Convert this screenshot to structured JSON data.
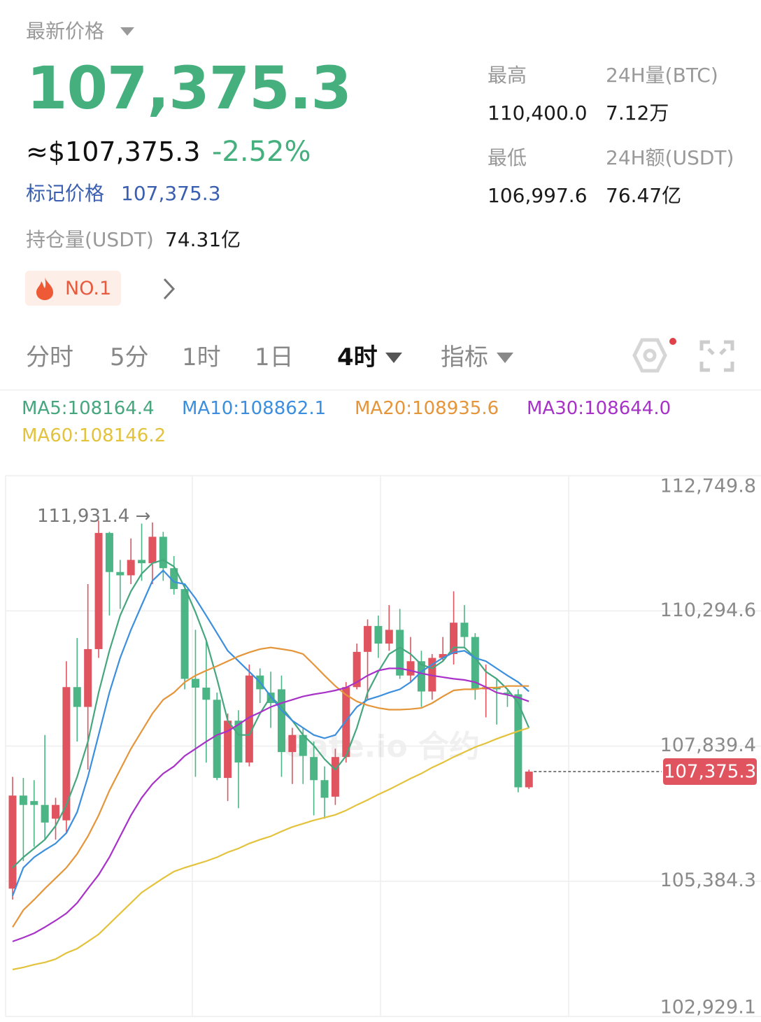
{
  "header": {
    "price_label": "最新价格",
    "price": "107,375.3",
    "usd_price": "≈$107,375.3",
    "change": "-2.52%",
    "mark_price_label": "标记价格",
    "mark_price": "107,375.3",
    "oi_label": "持仓量(USDT)",
    "oi": "74.31亿",
    "rank": "NO.1"
  },
  "stats": [
    {
      "label": "最高",
      "value": "110,400.0"
    },
    {
      "label": "24H量(BTC)",
      "value": "7.12万"
    },
    {
      "label": "最低",
      "value": "106,997.6"
    },
    {
      "label": "24H额(USDT)",
      "value": "76.47亿"
    }
  ],
  "tabs": [
    "分时",
    "5分",
    "1时",
    "1日",
    "4时",
    "指标"
  ],
  "active_tab": 4,
  "chart_data": {
    "type": "candlestick",
    "up_color": "#e0545f",
    "down_color": "#4cb585",
    "ylim": [
      102929.1,
      112749.8
    ],
    "yticks": [
      {
        "value": 102929.1,
        "label": "102,929.1"
      },
      {
        "value": 105384.3,
        "label": "105,384.3"
      },
      {
        "value": 107839.4,
        "label": "107,839.4"
      },
      {
        "value": 110294.6,
        "label": "110,294.6"
      },
      {
        "value": 112749.8,
        "label": "112,749.8"
      }
    ],
    "grid": true,
    "high_label": "111,931.4 →",
    "last_price_label": "107,375.3",
    "watermark": "Gate.io 合约",
    "open": [
      105250,
      106940,
      106840,
      106770,
      106520,
      106490,
      108910,
      108550,
      109600,
      111710,
      111000,
      110940,
      111220,
      111160,
      111640,
      111070,
      110690,
      109060,
      108900,
      108680,
      107260,
      108300,
      107540,
      109120,
      108810,
      108870,
      107730,
      108040,
      107640,
      107220,
      106920,
      107640,
      108910,
      109550,
      110020,
      109700,
      109950,
      109120,
      109380,
      108830,
      109440,
      109510,
      110080,
      109820,
      108870,
      108910,
      108810,
      108780,
      107090
    ],
    "high": [
      107280,
      107260,
      107220,
      108040,
      106900,
      109380,
      109800,
      110780,
      111931.4,
      111730,
      111220,
      111610,
      111880,
      111900,
      111730,
      111290,
      110780,
      109950,
      109760,
      108810,
      108430,
      108490,
      109320,
      109250,
      109190,
      109120,
      108170,
      108170,
      107920,
      107470,
      107790,
      109000,
      109700,
      110140,
      110210,
      110400,
      110330,
      109820,
      109570,
      109510,
      109820,
      110650,
      110400,
      109890,
      109320,
      109060,
      108870,
      108870,
      107410
    ],
    "low": [
      105050,
      105750,
      106010,
      106140,
      106140,
      106260,
      107920,
      107410,
      109440,
      110210,
      110330,
      110780,
      110840,
      110780,
      110840,
      110590,
      108870,
      107280,
      107540,
      107220,
      106840,
      106710,
      107470,
      108620,
      108170,
      107280,
      107150,
      107150,
      106580,
      106520,
      106770,
      107540,
      108870,
      108680,
      109440,
      109570,
      109060,
      109000,
      108550,
      108680,
      109380,
      109320,
      109630,
      108680,
      108360,
      108230,
      108550,
      107000,
      107060
    ],
    "close": [
      106940,
      106770,
      106770,
      106450,
      106770,
      108910,
      108550,
      109600,
      111710,
      111000,
      110940,
      111220,
      111160,
      111640,
      111070,
      110690,
      109060,
      108900,
      108680,
      107260,
      108300,
      107540,
      109120,
      108870,
      108620,
      107730,
      108040,
      107660,
      107220,
      106900,
      107640,
      108910,
      109550,
      110020,
      109700,
      109950,
      109120,
      109380,
      108830,
      109440,
      109510,
      110080,
      109820,
      108870,
      108910,
      108870,
      108780,
      107090,
      107375.3
    ],
    "series": [
      {
        "name": "MA5:108164.4",
        "color": "#46a77e",
        "values": [
          105630,
          105820,
          105980,
          106140,
          106390,
          106770,
          107280,
          107920,
          108810,
          109570,
          110210,
          110650,
          110970,
          111160,
          111220,
          111100,
          110720,
          110270,
          109760,
          109060,
          108300,
          108040,
          108040,
          108430,
          108740,
          108550,
          108300,
          108040,
          107850,
          107600,
          107410,
          107660,
          108170,
          108810,
          109190,
          109510,
          109630,
          109510,
          109320,
          109250,
          109380,
          109630,
          109630,
          109440,
          109190,
          109060,
          108870,
          108620,
          108170
        ]
      },
      {
        "name": "MA10:108862.1",
        "color": "#3c8fde",
        "values": [
          105120,
          105630,
          105820,
          105950,
          106070,
          106260,
          106640,
          107280,
          108040,
          108810,
          109440,
          109950,
          110400,
          110840,
          111030,
          110820,
          110780,
          110520,
          110210,
          109890,
          109570,
          109380,
          109190,
          109000,
          108740,
          108490,
          108300,
          108170,
          108040,
          107980,
          108040,
          108300,
          108550,
          108680,
          108740,
          108810,
          108870,
          109000,
          109190,
          109320,
          109440,
          109540,
          109570,
          109440,
          109380,
          109250,
          109120,
          109000,
          108830
        ]
      },
      {
        "name": "MA20:108935.6",
        "color": "#e5953a",
        "values": [
          104550,
          104860,
          105050,
          105250,
          105440,
          105630,
          105880,
          106200,
          106580,
          107030,
          107410,
          107790,
          108110,
          108430,
          108680,
          108810,
          109000,
          109120,
          109210,
          109290,
          109380,
          109470,
          109540,
          109600,
          109630,
          109600,
          109570,
          109510,
          109320,
          109120,
          108930,
          108770,
          108650,
          108580,
          108530,
          108500,
          108500,
          108510,
          108530,
          108620,
          108740,
          108850,
          108870,
          108870,
          108900,
          108900,
          108930,
          108930,
          108930
        ]
      },
      {
        "name": "MA30:108644.0",
        "color": "#a832c8",
        "values": [
          104290,
          104360,
          104440,
          104550,
          104670,
          104800,
          104990,
          105250,
          105500,
          105820,
          106200,
          106580,
          106900,
          107150,
          107340,
          107470,
          107660,
          107790,
          107920,
          108040,
          108110,
          108230,
          108360,
          108450,
          108550,
          108620,
          108680,
          108740,
          108780,
          108810,
          108850,
          108900,
          109000,
          109120,
          109210,
          109250,
          109250,
          109210,
          109160,
          109120,
          109090,
          109060,
          109040,
          109000,
          108910,
          108810,
          108770,
          108720,
          108650
        ]
      },
      {
        "name": "MA60:108146.2",
        "color": "#e3c23c",
        "values": [
          103780,
          103820,
          103870,
          103910,
          103970,
          104080,
          104160,
          104290,
          104420,
          104610,
          104800,
          104990,
          105180,
          105310,
          105440,
          105560,
          105630,
          105690,
          105750,
          105820,
          105910,
          105980,
          106070,
          106140,
          106200,
          106290,
          106370,
          106430,
          106490,
          106540,
          106590,
          106670,
          106770,
          106860,
          106960,
          107050,
          107150,
          107250,
          107340,
          107450,
          107540,
          107640,
          107730,
          107820,
          107890,
          107970,
          108040,
          108110,
          108170
        ]
      }
    ]
  }
}
